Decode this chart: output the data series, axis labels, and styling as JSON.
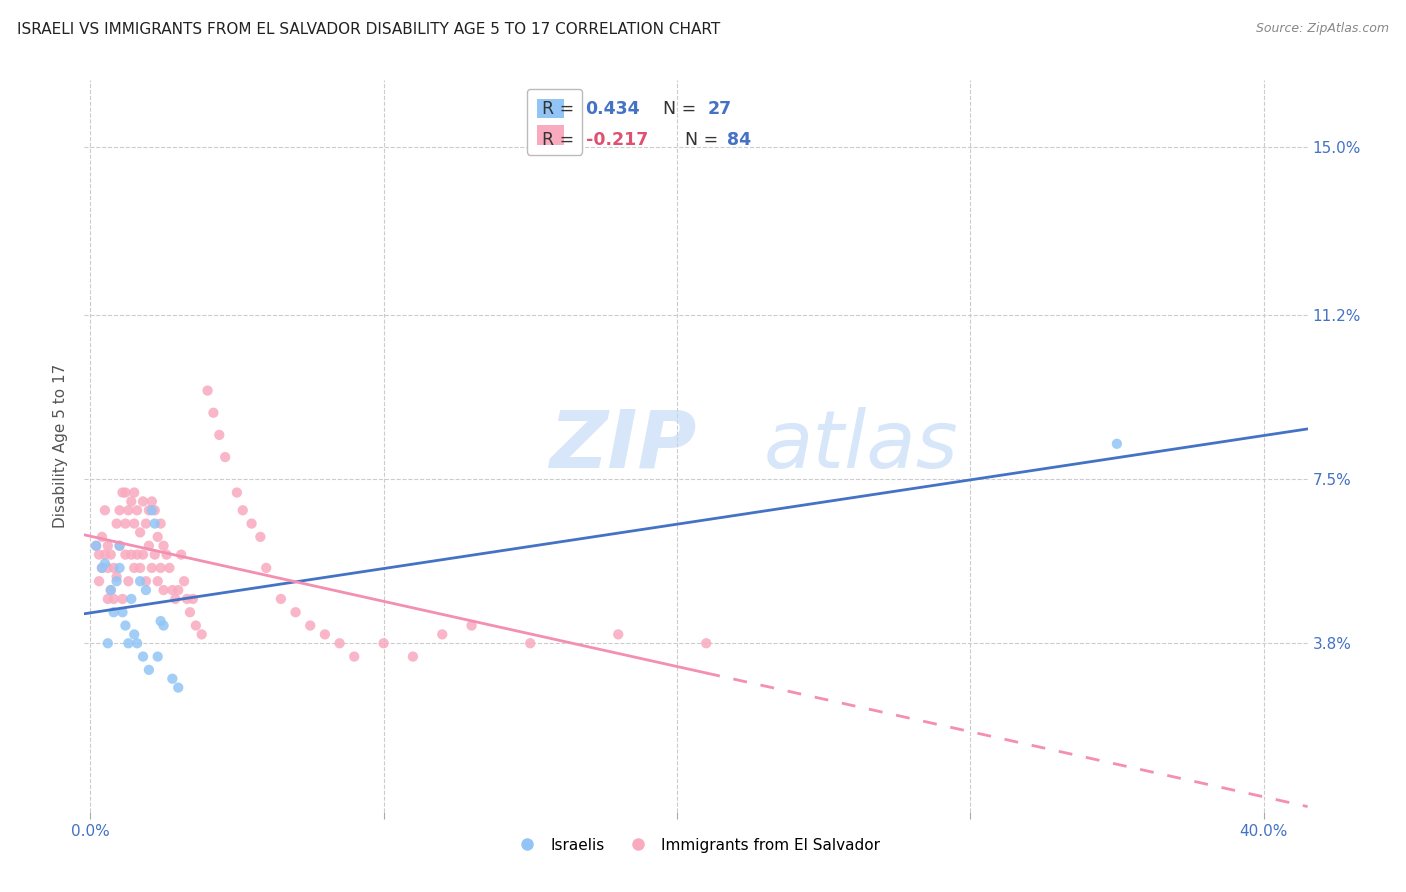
{
  "title": "ISRAELI VS IMMIGRANTS FROM EL SALVADOR DISABILITY AGE 5 TO 17 CORRELATION CHART",
  "source": "Source: ZipAtlas.com",
  "ylabel": "Disability Age 5 to 17",
  "xlabel_ticks": [
    "0.0%",
    "",
    "",
    "",
    "40.0%"
  ],
  "xlabel_vals": [
    0.0,
    0.1,
    0.2,
    0.3,
    0.4
  ],
  "ylabel_ticks": [
    "3.8%",
    "7.5%",
    "11.2%",
    "15.0%"
  ],
  "ylabel_vals": [
    0.038,
    0.075,
    0.112,
    0.15
  ],
  "ylim": [
    0.0,
    0.165
  ],
  "xlim": [
    -0.002,
    0.415
  ],
  "blue_color": "#92C5F5",
  "pink_color": "#F9AABF",
  "line_blue": "#4472C4",
  "line_pink": "#F48FB1",
  "watermark": "ZIPatlas",
  "israelis_x": [
    0.002,
    0.004,
    0.005,
    0.006,
    0.007,
    0.008,
    0.009,
    0.01,
    0.01,
    0.011,
    0.012,
    0.013,
    0.014,
    0.015,
    0.016,
    0.017,
    0.018,
    0.019,
    0.02,
    0.021,
    0.022,
    0.023,
    0.024,
    0.025,
    0.028,
    0.03,
    0.35
  ],
  "israelis_y": [
    0.06,
    0.055,
    0.056,
    0.038,
    0.05,
    0.045,
    0.052,
    0.055,
    0.06,
    0.045,
    0.042,
    0.038,
    0.048,
    0.04,
    0.038,
    0.052,
    0.035,
    0.05,
    0.032,
    0.068,
    0.065,
    0.035,
    0.043,
    0.042,
    0.03,
    0.028,
    0.083
  ],
  "salvador_x": [
    0.002,
    0.003,
    0.003,
    0.004,
    0.004,
    0.005,
    0.005,
    0.006,
    0.006,
    0.006,
    0.007,
    0.007,
    0.008,
    0.008,
    0.009,
    0.009,
    0.01,
    0.01,
    0.011,
    0.011,
    0.012,
    0.012,
    0.012,
    0.013,
    0.013,
    0.014,
    0.014,
    0.015,
    0.015,
    0.015,
    0.016,
    0.016,
    0.017,
    0.017,
    0.018,
    0.018,
    0.019,
    0.019,
    0.02,
    0.02,
    0.021,
    0.021,
    0.022,
    0.022,
    0.023,
    0.023,
    0.024,
    0.024,
    0.025,
    0.025,
    0.026,
    0.027,
    0.028,
    0.029,
    0.03,
    0.031,
    0.032,
    0.033,
    0.034,
    0.035,
    0.036,
    0.038,
    0.04,
    0.042,
    0.044,
    0.046,
    0.05,
    0.052,
    0.055,
    0.058,
    0.06,
    0.065,
    0.07,
    0.075,
    0.08,
    0.085,
    0.09,
    0.1,
    0.11,
    0.12,
    0.13,
    0.15,
    0.18,
    0.21
  ],
  "salvador_y": [
    0.06,
    0.058,
    0.052,
    0.062,
    0.055,
    0.068,
    0.058,
    0.055,
    0.06,
    0.048,
    0.058,
    0.05,
    0.055,
    0.048,
    0.065,
    0.053,
    0.068,
    0.06,
    0.072,
    0.048,
    0.065,
    0.058,
    0.072,
    0.068,
    0.052,
    0.07,
    0.058,
    0.072,
    0.065,
    0.055,
    0.068,
    0.058,
    0.055,
    0.063,
    0.07,
    0.058,
    0.065,
    0.052,
    0.068,
    0.06,
    0.07,
    0.055,
    0.068,
    0.058,
    0.062,
    0.052,
    0.065,
    0.055,
    0.06,
    0.05,
    0.058,
    0.055,
    0.05,
    0.048,
    0.05,
    0.058,
    0.052,
    0.048,
    0.045,
    0.048,
    0.042,
    0.04,
    0.095,
    0.09,
    0.085,
    0.08,
    0.072,
    0.068,
    0.065,
    0.062,
    0.055,
    0.048,
    0.045,
    0.042,
    0.04,
    0.038,
    0.035,
    0.038,
    0.035,
    0.04,
    0.042,
    0.038,
    0.04,
    0.038
  ]
}
